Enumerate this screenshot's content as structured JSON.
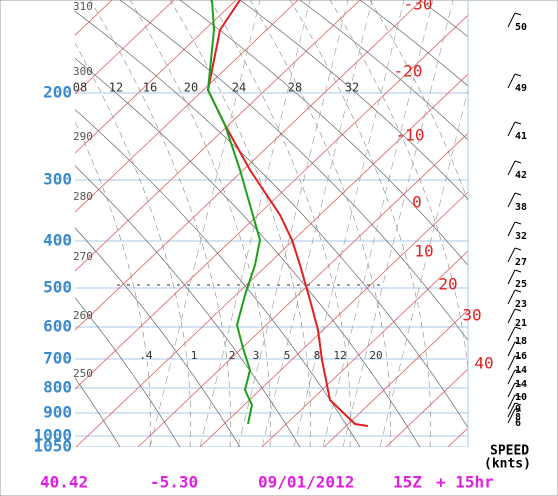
{
  "pressure_labels": [
    "200",
    "300",
    "400",
    "500",
    "600",
    "700",
    "800",
    "900",
    "1000",
    "1050"
  ],
  "temperature_labels": [
    "-30",
    "-20",
    "-10",
    "0",
    "10",
    "20",
    "30",
    "40"
  ],
  "mixing_ratio_top_labels": [
    "08",
    "12",
    "16",
    "20",
    "24",
    "28",
    "32"
  ],
  "mixing_ratio_bottom_labels": [
    ".4",
    "1",
    "2",
    "3",
    "5",
    "8",
    "12",
    "20"
  ],
  "theta_labels": [
    "310",
    "300",
    "290",
    "280",
    "270",
    "260",
    "250"
  ],
  "wind_speed_labels": [
    "50",
    "49",
    "41",
    "42",
    "38",
    "32",
    "27",
    "25",
    "23",
    "21",
    "18",
    "16",
    "14",
    "14",
    "10",
    "9",
    "8",
    "6"
  ],
  "speed_title": "SPEED",
  "speed_units": "(knts)",
  "footer": {
    "latitude": "40.42",
    "longitude": "-5.30",
    "date": "09/01/2012",
    "hour": "15Z",
    "forecast": "+ 15hr"
  }
}
